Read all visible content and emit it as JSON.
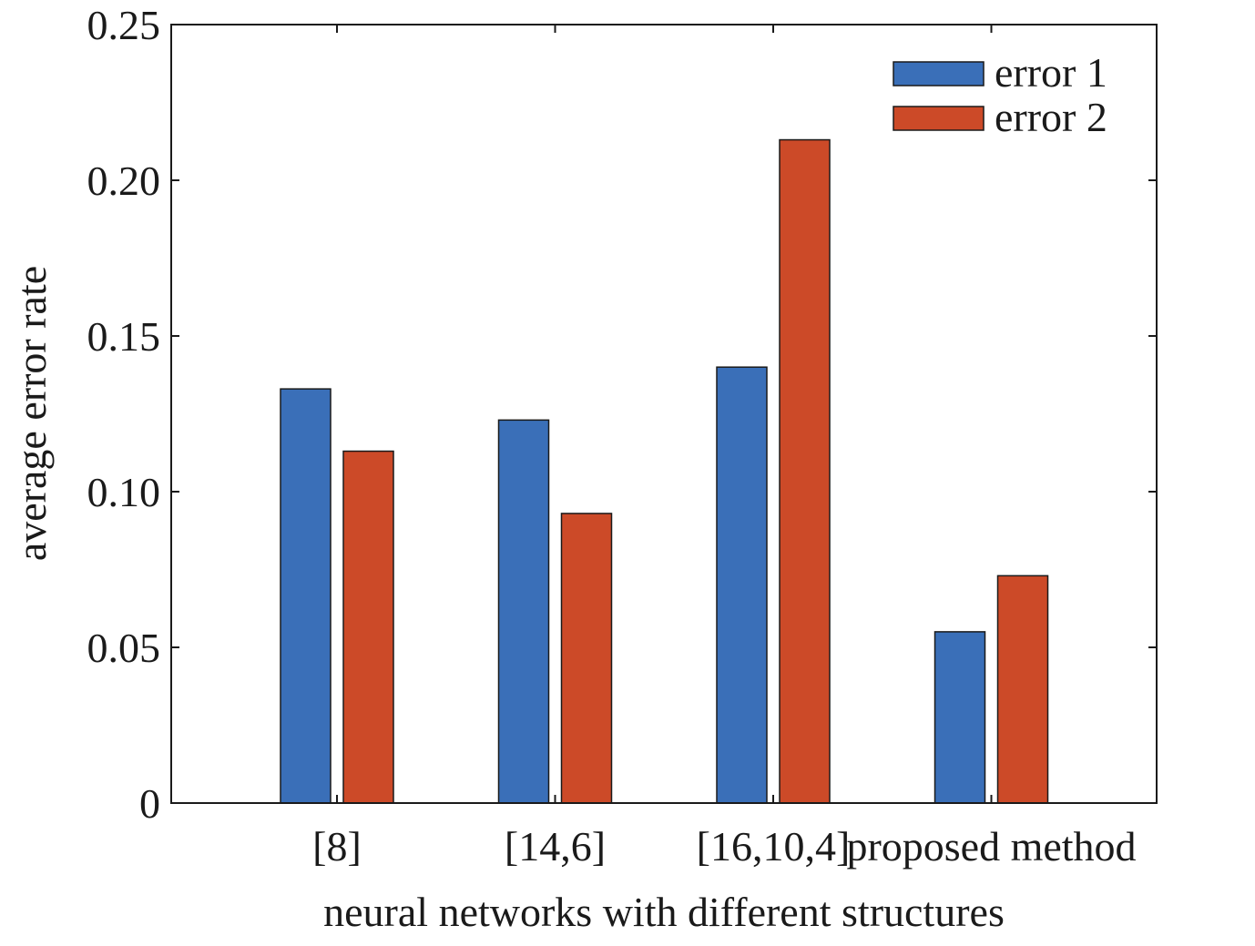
{
  "chart_data": {
    "type": "bar",
    "title": "",
    "xlabel": "neural networks with different structures",
    "ylabel": "average error rate",
    "categories": [
      "[8]",
      "[14,6]",
      "[16,10,4]",
      "proposed method"
    ],
    "series": [
      {
        "name": "error 1",
        "color": "#3a6fb8",
        "values": [
          0.133,
          0.123,
          0.14,
          0.055
        ]
      },
      {
        "name": "error 2",
        "color": "#cc4a28",
        "values": [
          0.113,
          0.093,
          0.213,
          0.073
        ]
      }
    ],
    "ylim": [
      0,
      0.25
    ],
    "yticks": [
      0,
      0.05,
      0.1,
      0.15,
      0.2,
      0.25
    ],
    "ytick_labels": [
      "0",
      "0.05",
      "0.10",
      "0.15",
      "0.20",
      "0.25"
    ],
    "grid": false,
    "legend_position": "top-right"
  }
}
